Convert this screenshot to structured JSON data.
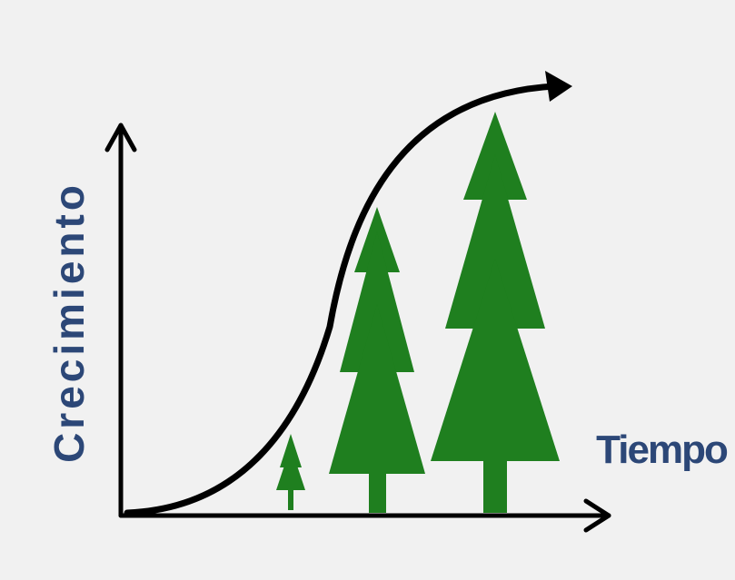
{
  "axis_labels": {
    "y": "Crecimiento",
    "x": "Tiempo"
  }
}
